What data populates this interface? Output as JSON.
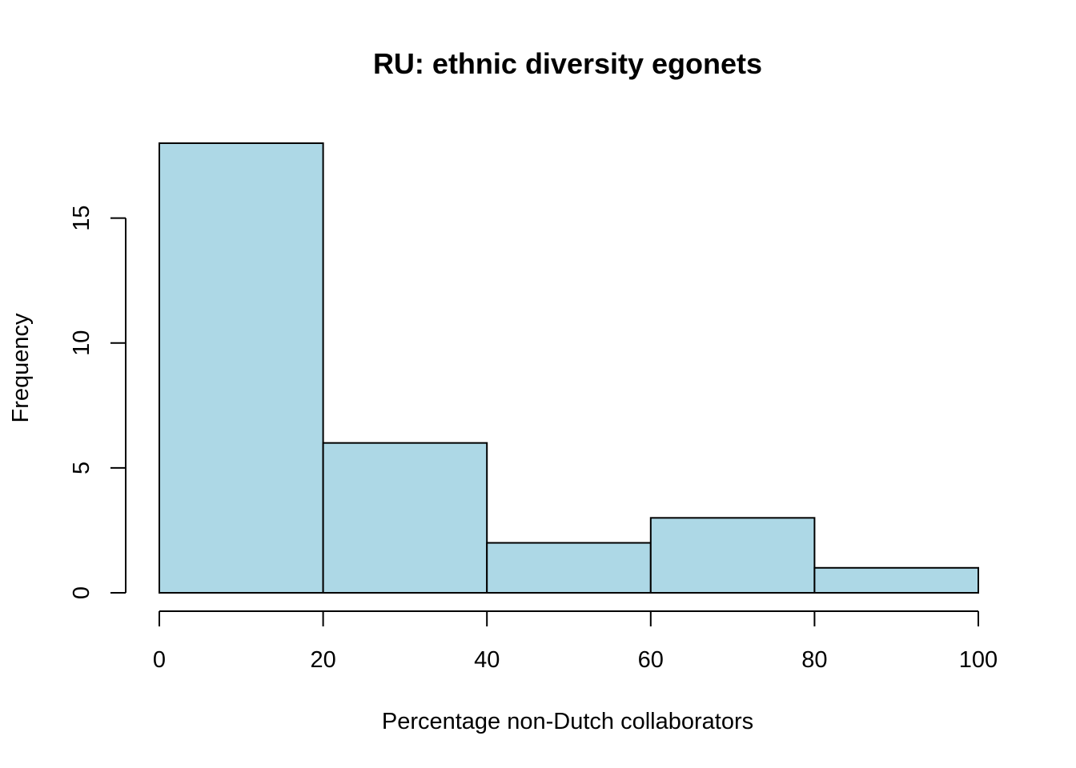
{
  "chart_data": {
    "type": "bar",
    "title": "RU: ethnic diversity egonets",
    "xlabel": "Percentage non-Dutch collaborators",
    "ylabel": "Frequency",
    "bins": [
      {
        "from": 0,
        "to": 20,
        "count": 18
      },
      {
        "from": 20,
        "to": 40,
        "count": 6
      },
      {
        "from": 40,
        "to": 60,
        "count": 2
      },
      {
        "from": 60,
        "to": 80,
        "count": 3
      },
      {
        "from": 80,
        "to": 100,
        "count": 1
      }
    ],
    "xlim": [
      0,
      100
    ],
    "ylim": [
      0,
      18
    ],
    "x_ticks": [
      0,
      20,
      40,
      60,
      80,
      100
    ],
    "y_ticks": [
      0,
      5,
      10,
      15
    ],
    "bar_color": "#add8e6",
    "grid": false
  }
}
